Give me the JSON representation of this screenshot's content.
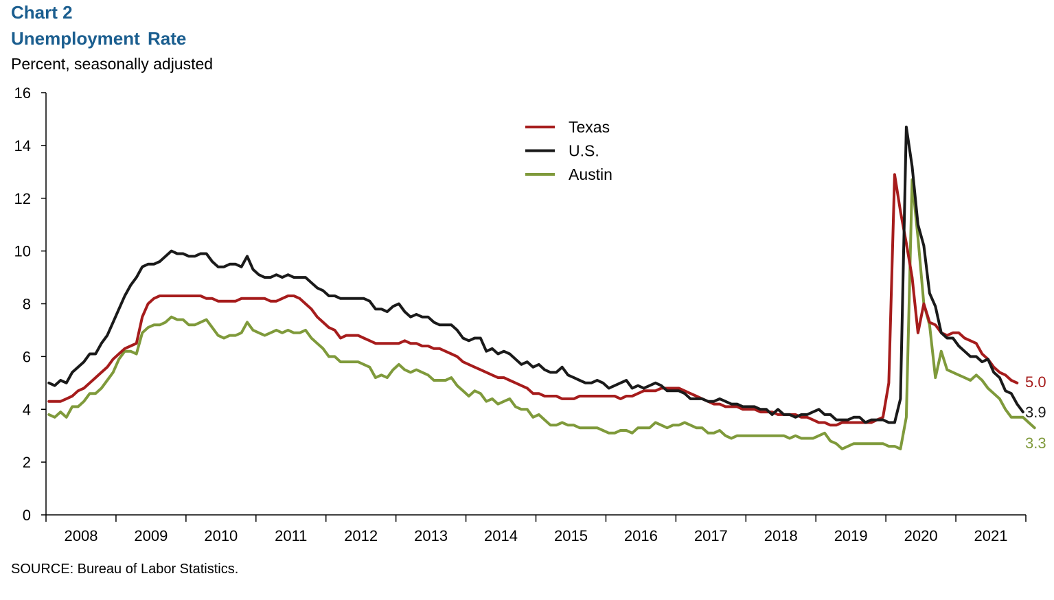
{
  "header": {
    "chart_number": "Chart 2",
    "title": "Unemployment  Rate",
    "subtitle": "Percent, seasonally adjusted"
  },
  "footer": {
    "source": "SOURCE: Bureau of Labor Statistics."
  },
  "colors": {
    "texas": "#a61c1c",
    "us": "#1a1a1a",
    "austin": "#7f9a3b",
    "title": "#1b5e8f"
  },
  "chart_data": {
    "type": "line",
    "title": "Unemployment  Rate",
    "subtitle": "Percent, seasonally adjusted",
    "ylim": [
      0,
      16
    ],
    "y_ticks": [
      0,
      2,
      4,
      6,
      8,
      10,
      12,
      14,
      16
    ],
    "x_labels": [
      "2008",
      "2009",
      "2010",
      "2011",
      "2012",
      "2013",
      "2014",
      "2015",
      "2016",
      "2017",
      "2018",
      "2019",
      "2020",
      "2021"
    ],
    "grid": false,
    "legend_position": "top-center",
    "frequency": "monthly",
    "start": "2008-01",
    "end": "2021-12",
    "series": [
      {
        "name": "Texas",
        "color": "#a61c1c",
        "end_label": "5.0",
        "values": [
          4.3,
          4.3,
          4.3,
          4.4,
          4.5,
          4.7,
          4.8,
          5.0,
          5.2,
          5.4,
          5.6,
          5.9,
          6.1,
          6.3,
          6.4,
          6.5,
          7.5,
          8.0,
          8.2,
          8.3,
          8.3,
          8.3,
          8.3,
          8.3,
          8.3,
          8.3,
          8.3,
          8.2,
          8.2,
          8.1,
          8.1,
          8.1,
          8.1,
          8.2,
          8.2,
          8.2,
          8.2,
          8.2,
          8.1,
          8.1,
          8.2,
          8.3,
          8.3,
          8.2,
          8.0,
          7.8,
          7.5,
          7.3,
          7.1,
          7.0,
          6.7,
          6.8,
          6.8,
          6.8,
          6.7,
          6.6,
          6.5,
          6.5,
          6.5,
          6.5,
          6.5,
          6.6,
          6.5,
          6.5,
          6.4,
          6.4,
          6.3,
          6.3,
          6.2,
          6.1,
          6.0,
          5.8,
          5.7,
          5.6,
          5.5,
          5.4,
          5.3,
          5.2,
          5.2,
          5.1,
          5.0,
          4.9,
          4.8,
          4.6,
          4.6,
          4.5,
          4.5,
          4.5,
          4.4,
          4.4,
          4.4,
          4.5,
          4.5,
          4.5,
          4.5,
          4.5,
          4.5,
          4.5,
          4.4,
          4.5,
          4.5,
          4.6,
          4.7,
          4.7,
          4.7,
          4.8,
          4.8,
          4.8,
          4.8,
          4.7,
          4.6,
          4.5,
          4.4,
          4.3,
          4.2,
          4.2,
          4.1,
          4.1,
          4.1,
          4.0,
          4.0,
          4.0,
          3.9,
          3.9,
          3.9,
          3.8,
          3.8,
          3.8,
          3.8,
          3.7,
          3.7,
          3.6,
          3.5,
          3.5,
          3.4,
          3.4,
          3.5,
          3.5,
          3.5,
          3.5,
          3.5,
          3.5,
          3.6,
          3.7,
          5.0,
          12.9,
          11.5,
          10.3,
          9.0,
          6.9,
          8.0,
          7.3,
          7.2,
          6.9,
          6.8,
          6.9,
          6.9,
          6.7,
          6.6,
          6.5,
          6.1,
          5.9,
          5.6,
          5.4,
          5.3,
          5.1,
          5.0
        ]
      },
      {
        "name": "U.S.",
        "color": "#1a1a1a",
        "end_label": "3.9",
        "values": [
          5.0,
          4.9,
          5.1,
          5.0,
          5.4,
          5.6,
          5.8,
          6.1,
          6.1,
          6.5,
          6.8,
          7.3,
          7.8,
          8.3,
          8.7,
          9.0,
          9.4,
          9.5,
          9.5,
          9.6,
          9.8,
          10.0,
          9.9,
          9.9,
          9.8,
          9.8,
          9.9,
          9.9,
          9.6,
          9.4,
          9.4,
          9.5,
          9.5,
          9.4,
          9.8,
          9.3,
          9.1,
          9.0,
          9.0,
          9.1,
          9.0,
          9.1,
          9.0,
          9.0,
          9.0,
          8.8,
          8.6,
          8.5,
          8.3,
          8.3,
          8.2,
          8.2,
          8.2,
          8.2,
          8.2,
          8.1,
          7.8,
          7.8,
          7.7,
          7.9,
          8.0,
          7.7,
          7.5,
          7.6,
          7.5,
          7.5,
          7.3,
          7.2,
          7.2,
          7.2,
          7.0,
          6.7,
          6.6,
          6.7,
          6.7,
          6.2,
          6.3,
          6.1,
          6.2,
          6.1,
          5.9,
          5.7,
          5.8,
          5.6,
          5.7,
          5.5,
          5.4,
          5.4,
          5.6,
          5.3,
          5.2,
          5.1,
          5.0,
          5.0,
          5.1,
          5.0,
          4.8,
          4.9,
          5.0,
          5.1,
          4.8,
          4.9,
          4.8,
          4.9,
          5.0,
          4.9,
          4.7,
          4.7,
          4.7,
          4.6,
          4.4,
          4.4,
          4.4,
          4.3,
          4.3,
          4.4,
          4.3,
          4.2,
          4.2,
          4.1,
          4.1,
          4.1,
          4.0,
          4.0,
          3.8,
          4.0,
          3.8,
          3.8,
          3.7,
          3.8,
          3.8,
          3.9,
          4.0,
          3.8,
          3.8,
          3.6,
          3.6,
          3.6,
          3.7,
          3.7,
          3.5,
          3.6,
          3.6,
          3.6,
          3.5,
          3.5,
          4.4,
          14.7,
          13.2,
          11.0,
          10.2,
          8.4,
          7.9,
          6.9,
          6.7,
          6.7,
          6.4,
          6.2,
          6.0,
          6.0,
          5.8,
          5.9,
          5.4,
          5.2,
          4.7,
          4.6,
          4.2,
          3.9
        ]
      },
      {
        "name": "Austin",
        "color": "#7f9a3b",
        "end_label": "3.3",
        "values": [
          3.8,
          3.7,
          3.9,
          3.7,
          4.1,
          4.1,
          4.3,
          4.6,
          4.6,
          4.8,
          5.1,
          5.4,
          5.9,
          6.2,
          6.2,
          6.1,
          6.9,
          7.1,
          7.2,
          7.2,
          7.3,
          7.5,
          7.4,
          7.4,
          7.2,
          7.2,
          7.3,
          7.4,
          7.1,
          6.8,
          6.7,
          6.8,
          6.8,
          6.9,
          7.3,
          7.0,
          6.9,
          6.8,
          6.9,
          7.0,
          6.9,
          7.0,
          6.9,
          6.9,
          7.0,
          6.7,
          6.5,
          6.3,
          6.0,
          6.0,
          5.8,
          5.8,
          5.8,
          5.8,
          5.7,
          5.6,
          5.2,
          5.3,
          5.2,
          5.5,
          5.7,
          5.5,
          5.4,
          5.5,
          5.4,
          5.3,
          5.1,
          5.1,
          5.1,
          5.2,
          4.9,
          4.7,
          4.5,
          4.7,
          4.6,
          4.3,
          4.4,
          4.2,
          4.3,
          4.4,
          4.1,
          4.0,
          4.0,
          3.7,
          3.8,
          3.6,
          3.4,
          3.4,
          3.5,
          3.4,
          3.4,
          3.3,
          3.3,
          3.3,
          3.3,
          3.2,
          3.1,
          3.1,
          3.2,
          3.2,
          3.1,
          3.3,
          3.3,
          3.3,
          3.5,
          3.4,
          3.3,
          3.4,
          3.4,
          3.5,
          3.4,
          3.3,
          3.3,
          3.1,
          3.1,
          3.2,
          3.0,
          2.9,
          3.0,
          3.0,
          3.0,
          3.0,
          3.0,
          3.0,
          3.0,
          3.0,
          3.0,
          2.9,
          3.0,
          2.9,
          2.9,
          2.9,
          3.0,
          3.1,
          2.8,
          2.7,
          2.5,
          2.6,
          2.7,
          2.7,
          2.7,
          2.7,
          2.7,
          2.7,
          2.6,
          2.6,
          2.5,
          3.7,
          12.7,
          10.5,
          8.0,
          7.2,
          5.2,
          6.2,
          5.5,
          5.4,
          5.3,
          5.2,
          5.1,
          5.3,
          5.1,
          4.8,
          4.6,
          4.4,
          4.0,
          3.7,
          3.7,
          3.7,
          3.5,
          3.3
        ]
      }
    ]
  }
}
